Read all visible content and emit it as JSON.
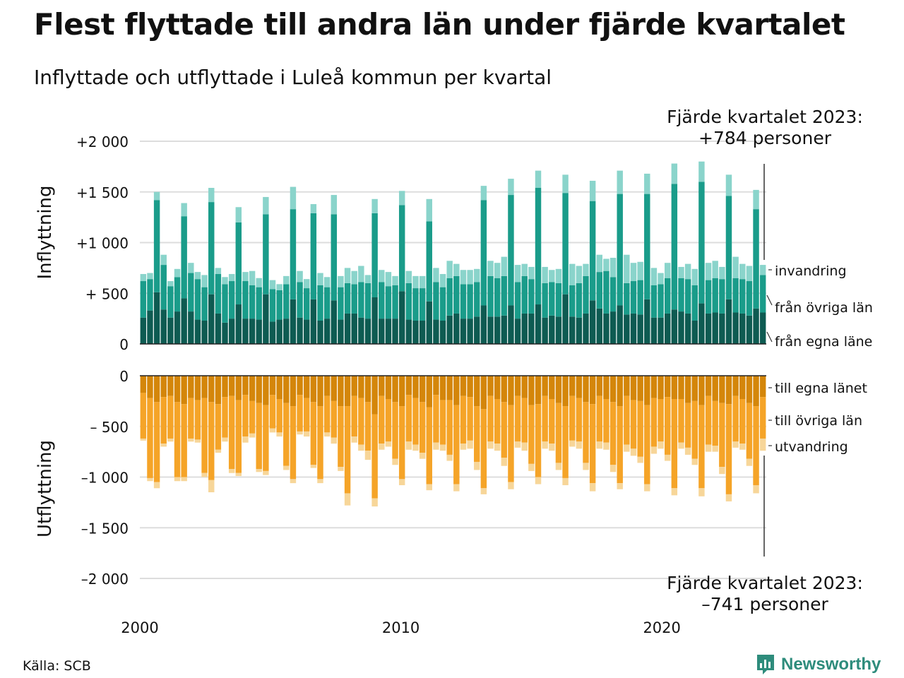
{
  "title": "Flest flyttade till andra län under fjärde kvartalet",
  "subtitle": "Inflyttade och utflyttade i Luleå kommun per kvartal",
  "source": "Källa: SCB",
  "brand": "Newsworthy",
  "colors": {
    "in_egna": "#0e5b52",
    "in_ovriga": "#1a9c8a",
    "in_invandring": "#8ad4cb",
    "ut_egna": "#d4860a",
    "ut_ovriga": "#f5a428",
    "ut_utvandring": "#f7d699",
    "grid": "#dddddd",
    "brand": "#2e8c7c"
  },
  "chart_data": [
    {
      "type": "bar",
      "stacked": true,
      "ylabel": "Inflyttning",
      "ylim": [
        0,
        2000
      ],
      "yticks": [
        0,
        500,
        1000,
        1500,
        2000
      ],
      "ytick_labels": [
        "0",
        "+  500",
        "+1 000",
        "+1 500",
        "+2 000"
      ],
      "xlim": [
        2000,
        2024
      ],
      "xticks": [
        2000,
        2010,
        2020
      ],
      "xtick_labels": [
        "2000",
        "2010",
        "2020"
      ],
      "annotation": [
        "Fjärde kvartalet 2023:",
        "+784 personer"
      ],
      "legend_labels": [
        "invandring",
        "från övriga län",
        "från egna läne"
      ],
      "series": [
        {
          "name": "från egna läne",
          "values": [
            260,
            330,
            510,
            340,
            260,
            320,
            450,
            320,
            240,
            230,
            490,
            300,
            210,
            250,
            390,
            250,
            250,
            240,
            490,
            220,
            240,
            250,
            440,
            260,
            240,
            440,
            230,
            250,
            430,
            240,
            300,
            300,
            260,
            250,
            460,
            250,
            250,
            250,
            520,
            240,
            230,
            230,
            420,
            240,
            230,
            280,
            300,
            250,
            250,
            270,
            380,
            270,
            270,
            280,
            380,
            250,
            300,
            300,
            390,
            260,
            280,
            270,
            490,
            270,
            260,
            300,
            430,
            350,
            300,
            320,
            380,
            290,
            300,
            290,
            440,
            260,
            260,
            300,
            340,
            320,
            300,
            230,
            400,
            300,
            310,
            300,
            440,
            310,
            300,
            280,
            350,
            310
          ]
        },
        {
          "name": "från övriga län",
          "values": [
            360,
            310,
            910,
            440,
            310,
            340,
            810,
            380,
            400,
            330,
            910,
            390,
            380,
            370,
            810,
            370,
            330,
            320,
            790,
            320,
            290,
            340,
            890,
            350,
            310,
            850,
            350,
            310,
            850,
            320,
            300,
            290,
            350,
            350,
            830,
            360,
            320,
            330,
            850,
            360,
            320,
            320,
            790,
            370,
            330,
            370,
            370,
            340,
            340,
            340,
            1040,
            400,
            380,
            390,
            1090,
            360,
            370,
            340,
            1150,
            340,
            330,
            330,
            1000,
            310,
            340,
            370,
            980,
            360,
            420,
            340,
            1100,
            310,
            320,
            340,
            1040,
            320,
            330,
            350,
            1240,
            330,
            340,
            350,
            1200,
            330,
            340,
            340,
            1020,
            340,
            340,
            340,
            980,
            370
          ]
        },
        {
          "name": "invandring",
          "values": [
            70,
            60,
            80,
            100,
            50,
            80,
            130,
            100,
            70,
            120,
            140,
            60,
            70,
            70,
            150,
            90,
            140,
            90,
            170,
            90,
            60,
            80,
            220,
            110,
            90,
            90,
            120,
            100,
            190,
            110,
            150,
            130,
            160,
            80,
            140,
            120,
            140,
            90,
            140,
            120,
            120,
            120,
            220,
            140,
            130,
            170,
            120,
            140,
            140,
            130,
            140,
            150,
            150,
            190,
            160,
            170,
            120,
            120,
            170,
            160,
            120,
            140,
            180,
            210,
            170,
            120,
            200,
            170,
            120,
            190,
            230,
            280,
            180,
            180,
            200,
            170,
            110,
            150,
            200,
            110,
            150,
            160,
            200,
            170,
            170,
            120,
            210,
            210,
            150,
            150,
            190,
            100
          ]
        }
      ]
    },
    {
      "type": "bar",
      "stacked": true,
      "ylabel": "Utflyttning",
      "ylim": [
        -2000,
        0
      ],
      "yticks": [
        0,
        -500,
        -1000,
        -1500,
        -2000
      ],
      "ytick_labels": [
        "0",
        "–  500",
        "–1 000",
        "–1 500",
        "–2 000"
      ],
      "annotation": [
        "Fjärde kvartalet 2023:",
        "–741 personer"
      ],
      "legend_labels": [
        "till egna länet",
        "till övriga län",
        "utvandring"
      ],
      "series": [
        {
          "name": "till egna länet",
          "values": [
            -170,
            -220,
            -260,
            -210,
            -200,
            -260,
            -280,
            -220,
            -240,
            -220,
            -260,
            -280,
            -210,
            -200,
            -240,
            -190,
            -250,
            -270,
            -290,
            -190,
            -230,
            -270,
            -300,
            -190,
            -220,
            -260,
            -300,
            -200,
            -250,
            -300,
            -300,
            -200,
            -220,
            -260,
            -380,
            -200,
            -230,
            -260,
            -300,
            -190,
            -220,
            -260,
            -310,
            -190,
            -240,
            -240,
            -290,
            -200,
            -210,
            -300,
            -330,
            -200,
            -230,
            -260,
            -290,
            -200,
            -220,
            -290,
            -280,
            -200,
            -230,
            -270,
            -300,
            -200,
            -220,
            -260,
            -280,
            -200,
            -230,
            -260,
            -300,
            -200,
            -240,
            -250,
            -290,
            -220,
            -230,
            -210,
            -230,
            -230,
            -270,
            -250,
            -290,
            -200,
            -250,
            -270,
            -280,
            -200,
            -230,
            -270,
            -300,
            -210
          ]
        },
        {
          "name": "till övriga län",
          "values": [
            -450,
            -790,
            -790,
            -460,
            -420,
            -740,
            -720,
            -400,
            -390,
            -740,
            -770,
            -450,
            -400,
            -720,
            -720,
            -410,
            -320,
            -650,
            -650,
            -330,
            -330,
            -620,
            -720,
            -360,
            -330,
            -620,
            -720,
            -360,
            -360,
            -600,
            -860,
            -400,
            -460,
            -480,
            -830,
            -470,
            -420,
            -560,
            -720,
            -460,
            -460,
            -500,
            -760,
            -470,
            -440,
            -540,
            -780,
            -470,
            -430,
            -550,
            -780,
            -450,
            -440,
            -550,
            -760,
            -450,
            -440,
            -580,
            -720,
            -450,
            -440,
            -590,
            -710,
            -440,
            -430,
            -600,
            -780,
            -450,
            -430,
            -620,
            -760,
            -480,
            -480,
            -550,
            -780,
            -480,
            -420,
            -570,
            -880,
            -430,
            -440,
            -570,
            -820,
            -480,
            -440,
            -630,
            -890,
            -450,
            -440,
            -550,
            -780,
            -410
          ]
        },
        {
          "name": "utvandring",
          "values": [
            -20,
            -30,
            -60,
            -30,
            -30,
            -40,
            -40,
            -30,
            -30,
            -40,
            -120,
            -30,
            -40,
            -40,
            -30,
            -60,
            -40,
            -30,
            -40,
            -40,
            -40,
            -40,
            -40,
            -30,
            -50,
            -30,
            -40,
            -40,
            -60,
            -40,
            -120,
            -60,
            -60,
            -90,
            -80,
            -60,
            -50,
            -60,
            -60,
            -80,
            -60,
            -60,
            -60,
            -70,
            -60,
            -60,
            -70,
            -60,
            -80,
            -80,
            -60,
            -70,
            -70,
            -80,
            -70,
            -60,
            -80,
            -70,
            -70,
            -70,
            -70,
            -70,
            -70,
            -60,
            -70,
            -70,
            -80,
            -70,
            -70,
            -70,
            -60,
            -70,
            -70,
            -60,
            -70,
            -70,
            -70,
            -60,
            -70,
            -60,
            -70,
            -60,
            -80,
            -70,
            -60,
            -70,
            -70,
            -60,
            -60,
            -70,
            -80,
            -120
          ]
        }
      ]
    }
  ]
}
